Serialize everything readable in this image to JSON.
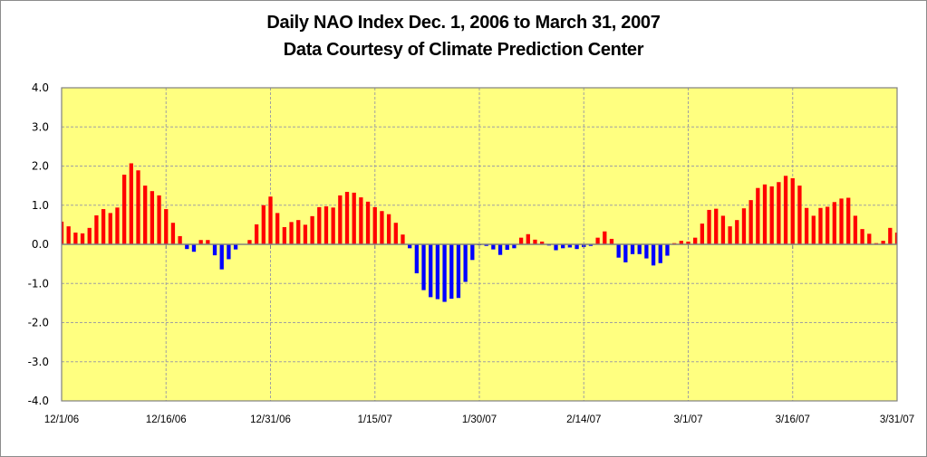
{
  "chart_data": {
    "type": "bar",
    "title": "Daily NAO Index Dec. 1, 2006 to March 31, 2007",
    "subtitle": "Data Courtesy of Climate Prediction Center",
    "xlabel": "",
    "ylabel": "",
    "ylim": [
      -4.0,
      4.0
    ],
    "yticks": [
      "4.0",
      "3.0",
      "2.0",
      "1.0",
      "0.0",
      "-1.0",
      "-2.0",
      "-3.0",
      "-4.0"
    ],
    "ytick_values": [
      4,
      3,
      2,
      1,
      0,
      -1,
      -2,
      -3,
      -4
    ],
    "xticks": [
      "12/1/06",
      "12/16/06",
      "12/31/06",
      "1/15/07",
      "1/30/07",
      "2/14/07",
      "3/1/07",
      "3/16/07",
      "3/31/07"
    ],
    "xtick_day_index": [
      0,
      15,
      30,
      45,
      60,
      75,
      90,
      105,
      120
    ],
    "grid": true,
    "legend": "none",
    "colors": {
      "positive": "#ff0000",
      "negative": "#0000ff",
      "plot_bg": "#ffff80",
      "grid": "#a0a0a0",
      "axis": "#808080"
    },
    "start_date": "12/1/06",
    "end_date": "3/31/07",
    "values": [
      0.58,
      0.46,
      0.3,
      0.28,
      0.42,
      0.74,
      0.9,
      0.8,
      0.94,
      1.78,
      2.07,
      1.89,
      1.5,
      1.36,
      1.25,
      0.9,
      0.55,
      0.21,
      -0.12,
      -0.19,
      0.11,
      0.11,
      -0.28,
      -0.64,
      -0.38,
      -0.13,
      0.0,
      0.11,
      0.51,
      1.0,
      1.22,
      0.8,
      0.44,
      0.57,
      0.62,
      0.5,
      0.72,
      0.95,
      0.97,
      0.94,
      1.25,
      1.34,
      1.32,
      1.2,
      1.09,
      0.95,
      0.85,
      0.77,
      0.55,
      0.25,
      -0.1,
      -0.74,
      -1.17,
      -1.35,
      -1.4,
      -1.47,
      -1.39,
      -1.37,
      -0.96,
      -0.4,
      -0.02,
      -0.04,
      -0.13,
      -0.27,
      -0.14,
      -0.1,
      0.17,
      0.26,
      0.12,
      0.07,
      -0.03,
      -0.15,
      -0.1,
      -0.08,
      -0.12,
      -0.07,
      -0.04,
      0.17,
      0.33,
      0.14,
      -0.34,
      -0.46,
      -0.25,
      -0.25,
      -0.36,
      -0.54,
      -0.48,
      -0.29,
      0.03,
      0.09,
      0.07,
      0.17,
      0.53,
      0.88,
      0.91,
      0.73,
      0.46,
      0.62,
      0.92,
      1.13,
      1.44,
      1.53,
      1.48,
      1.59,
      1.75,
      1.69,
      1.5,
      0.93,
      0.73,
      0.93,
      0.96,
      1.08,
      1.17,
      1.19,
      0.73,
      0.39,
      0.27,
      0.03,
      0.09,
      0.42,
      0.3
    ]
  }
}
